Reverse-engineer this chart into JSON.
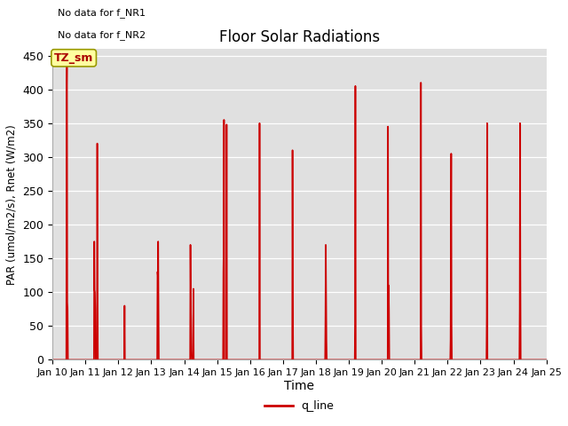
{
  "title": "Floor Solar Radiations",
  "xlabel": "Time",
  "ylabel": "PAR (umol/m2/s), Rnet (W/m2)",
  "annotations": [
    "No data for f_NR1",
    "No data for f_NR2"
  ],
  "legend_label": "q_line",
  "legend_color": "#cc0000",
  "tz_label": "TZ_sm",
  "line_color": "#cc0000",
  "bg_color": "#e0e0e0",
  "ylim": [
    0,
    460
  ],
  "peaks": [
    {
      "day": 10.0,
      "val": 0
    },
    {
      "day": 10.42,
      "val": 0
    },
    {
      "day": 10.43,
      "val": 390
    },
    {
      "day": 10.44,
      "val": 440
    },
    {
      "day": 10.45,
      "val": 85
    },
    {
      "day": 10.46,
      "val": 75
    },
    {
      "day": 10.47,
      "val": 0
    },
    {
      "day": 10.9,
      "val": 0
    },
    {
      "day": 10.91,
      "val": 0
    },
    {
      "day": 11.0,
      "val": 0
    },
    {
      "day": 11.26,
      "val": 0
    },
    {
      "day": 11.27,
      "val": 175
    },
    {
      "day": 11.28,
      "val": 103
    },
    {
      "day": 11.29,
      "val": 100
    },
    {
      "day": 11.3,
      "val": 75
    },
    {
      "day": 11.31,
      "val": 0
    },
    {
      "day": 11.35,
      "val": 0
    },
    {
      "day": 11.36,
      "val": 320
    },
    {
      "day": 11.37,
      "val": 75
    },
    {
      "day": 11.38,
      "val": 0
    },
    {
      "day": 11.9,
      "val": 0
    },
    {
      "day": 12.0,
      "val": 0
    },
    {
      "day": 12.18,
      "val": 0
    },
    {
      "day": 12.19,
      "val": 80
    },
    {
      "day": 12.2,
      "val": 0
    },
    {
      "day": 12.9,
      "val": 0
    },
    {
      "day": 13.0,
      "val": 0
    },
    {
      "day": 13.18,
      "val": 0
    },
    {
      "day": 13.19,
      "val": 130
    },
    {
      "day": 13.2,
      "val": 125
    },
    {
      "day": 13.21,
      "val": 175
    },
    {
      "day": 13.22,
      "val": 80
    },
    {
      "day": 13.23,
      "val": 0
    },
    {
      "day": 13.9,
      "val": 0
    },
    {
      "day": 14.0,
      "val": 0
    },
    {
      "day": 14.18,
      "val": 0
    },
    {
      "day": 14.19,
      "val": 170
    },
    {
      "day": 14.2,
      "val": 90
    },
    {
      "day": 14.21,
      "val": 60
    },
    {
      "day": 14.22,
      "val": 15
    },
    {
      "day": 14.23,
      "val": 0
    },
    {
      "day": 14.27,
      "val": 0
    },
    {
      "day": 14.28,
      "val": 105
    },
    {
      "day": 14.29,
      "val": 0
    },
    {
      "day": 14.9,
      "val": 0
    },
    {
      "day": 15.0,
      "val": 0
    },
    {
      "day": 15.18,
      "val": 0
    },
    {
      "day": 15.19,
      "val": 130
    },
    {
      "day": 15.2,
      "val": 170
    },
    {
      "day": 15.21,
      "val": 355
    },
    {
      "day": 15.22,
      "val": 0
    },
    {
      "day": 15.28,
      "val": 0
    },
    {
      "day": 15.29,
      "val": 348
    },
    {
      "day": 15.3,
      "val": 0
    },
    {
      "day": 15.9,
      "val": 0
    },
    {
      "day": 16.0,
      "val": 0
    },
    {
      "day": 16.28,
      "val": 0
    },
    {
      "day": 16.29,
      "val": 350
    },
    {
      "day": 16.3,
      "val": 0
    },
    {
      "day": 16.9,
      "val": 0
    },
    {
      "day": 17.0,
      "val": 0
    },
    {
      "day": 17.28,
      "val": 0
    },
    {
      "day": 17.29,
      "val": 310
    },
    {
      "day": 17.3,
      "val": 100
    },
    {
      "day": 17.31,
      "val": 0
    },
    {
      "day": 17.9,
      "val": 0
    },
    {
      "day": 18.0,
      "val": 0
    },
    {
      "day": 18.28,
      "val": 0
    },
    {
      "day": 18.29,
      "val": 65
    },
    {
      "day": 18.3,
      "val": 170
    },
    {
      "day": 18.31,
      "val": 100
    },
    {
      "day": 18.32,
      "val": 30
    },
    {
      "day": 18.33,
      "val": 0
    },
    {
      "day": 18.9,
      "val": 0
    },
    {
      "day": 19.0,
      "val": 0
    },
    {
      "day": 19.18,
      "val": 0
    },
    {
      "day": 19.19,
      "val": 55
    },
    {
      "day": 19.2,
      "val": 405
    },
    {
      "day": 19.21,
      "val": 0
    },
    {
      "day": 19.9,
      "val": 0
    },
    {
      "day": 20.0,
      "val": 0
    },
    {
      "day": 20.18,
      "val": 0
    },
    {
      "day": 20.19,
      "val": 345
    },
    {
      "day": 20.2,
      "val": 20
    },
    {
      "day": 20.21,
      "val": 110
    },
    {
      "day": 20.22,
      "val": 75
    },
    {
      "day": 20.23,
      "val": 0
    },
    {
      "day": 20.9,
      "val": 0
    },
    {
      "day": 21.0,
      "val": 0
    },
    {
      "day": 21.18,
      "val": 0
    },
    {
      "day": 21.19,
      "val": 410
    },
    {
      "day": 21.2,
      "val": 50
    },
    {
      "day": 21.21,
      "val": 0
    },
    {
      "day": 21.9,
      "val": 0
    },
    {
      "day": 22.0,
      "val": 0
    },
    {
      "day": 22.08,
      "val": 0
    },
    {
      "day": 22.09,
      "val": 30
    },
    {
      "day": 22.1,
      "val": 165
    },
    {
      "day": 22.11,
      "val": 305
    },
    {
      "day": 22.12,
      "val": 55
    },
    {
      "day": 22.13,
      "val": 0
    },
    {
      "day": 22.9,
      "val": 0
    },
    {
      "day": 23.0,
      "val": 0
    },
    {
      "day": 23.18,
      "val": 0
    },
    {
      "day": 23.19,
      "val": 65
    },
    {
      "day": 23.2,
      "val": 350
    },
    {
      "day": 23.21,
      "val": 0
    },
    {
      "day": 23.9,
      "val": 0
    },
    {
      "day": 24.0,
      "val": 0
    },
    {
      "day": 24.18,
      "val": 0
    },
    {
      "day": 24.19,
      "val": 75
    },
    {
      "day": 24.2,
      "val": 350
    },
    {
      "day": 24.21,
      "val": 140
    },
    {
      "day": 24.22,
      "val": 0
    },
    {
      "day": 25.0,
      "val": 0
    }
  ]
}
